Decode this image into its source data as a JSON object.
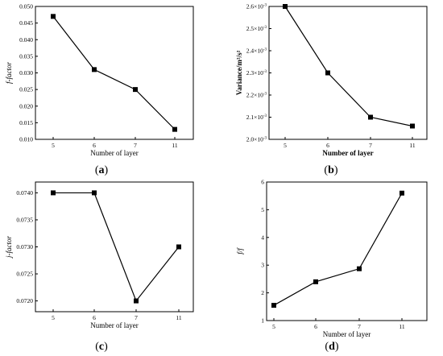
{
  "chart_data": [
    {
      "panel_label": "(a)",
      "type": "line",
      "categories": [
        "5",
        "6",
        "7",
        "11"
      ],
      "values": [
        0.047,
        0.031,
        0.025,
        0.013
      ],
      "xlabel": "Number of layer",
      "ylabel": "f-factor",
      "ylim": [
        0.01,
        0.05
      ],
      "yticks": [
        0.01,
        0.015,
        0.02,
        0.025,
        0.03,
        0.035,
        0.04,
        0.045,
        0.05
      ],
      "ytick_labels": [
        "0.010",
        "0.015",
        "0.020",
        "0.025",
        "0.030",
        "0.035",
        "0.040",
        "0.045",
        "0.050"
      ],
      "grid": false
    },
    {
      "panel_label": "(b)",
      "type": "line",
      "categories": [
        "5",
        "6",
        "7",
        "11"
      ],
      "values": [
        0.0026,
        0.0023,
        0.0021,
        0.00206
      ],
      "xlabel": "Number of layer",
      "ylabel": "Variance/m²/s²",
      "ylim": [
        0.002,
        0.0026
      ],
      "yticks": [
        0.002,
        0.0021,
        0.0022,
        0.0023,
        0.0024,
        0.0025,
        0.0026
      ],
      "ytick_labels": [
        "2.0×10",
        "2.1×10",
        "2.2×10",
        "2.3×10",
        "2.4×10",
        "2.5×10",
        "2.6×10"
      ],
      "ytick_exponent": "-3",
      "grid": false
    },
    {
      "panel_label": "(c)",
      "type": "line",
      "categories": [
        "5",
        "6",
        "7",
        "11"
      ],
      "values": [
        0.074,
        0.074,
        0.072,
        0.073
      ],
      "xlabel": "Number of layer",
      "ylabel": "j-factor",
      "ylim": [
        0.0718,
        0.0742
      ],
      "yticks": [
        0.072,
        0.0725,
        0.073,
        0.0735,
        0.074
      ],
      "ytick_labels": [
        "0.0720",
        "0.0725",
        "0.0730",
        "0.0735",
        "0.0740"
      ],
      "grid": false
    },
    {
      "panel_label": "(d)",
      "type": "line",
      "categories": [
        "5",
        "6",
        "7",
        "11"
      ],
      "values": [
        1.55,
        2.4,
        2.87,
        5.6
      ],
      "xlabel": "Number of layer",
      "ylabel": "f/f",
      "ylim": [
        1,
        6
      ],
      "yticks": [
        1,
        2,
        3,
        4,
        5,
        6
      ],
      "ytick_labels": [
        "1",
        "2",
        "3",
        "4",
        "5",
        "6"
      ],
      "grid": false
    }
  ]
}
